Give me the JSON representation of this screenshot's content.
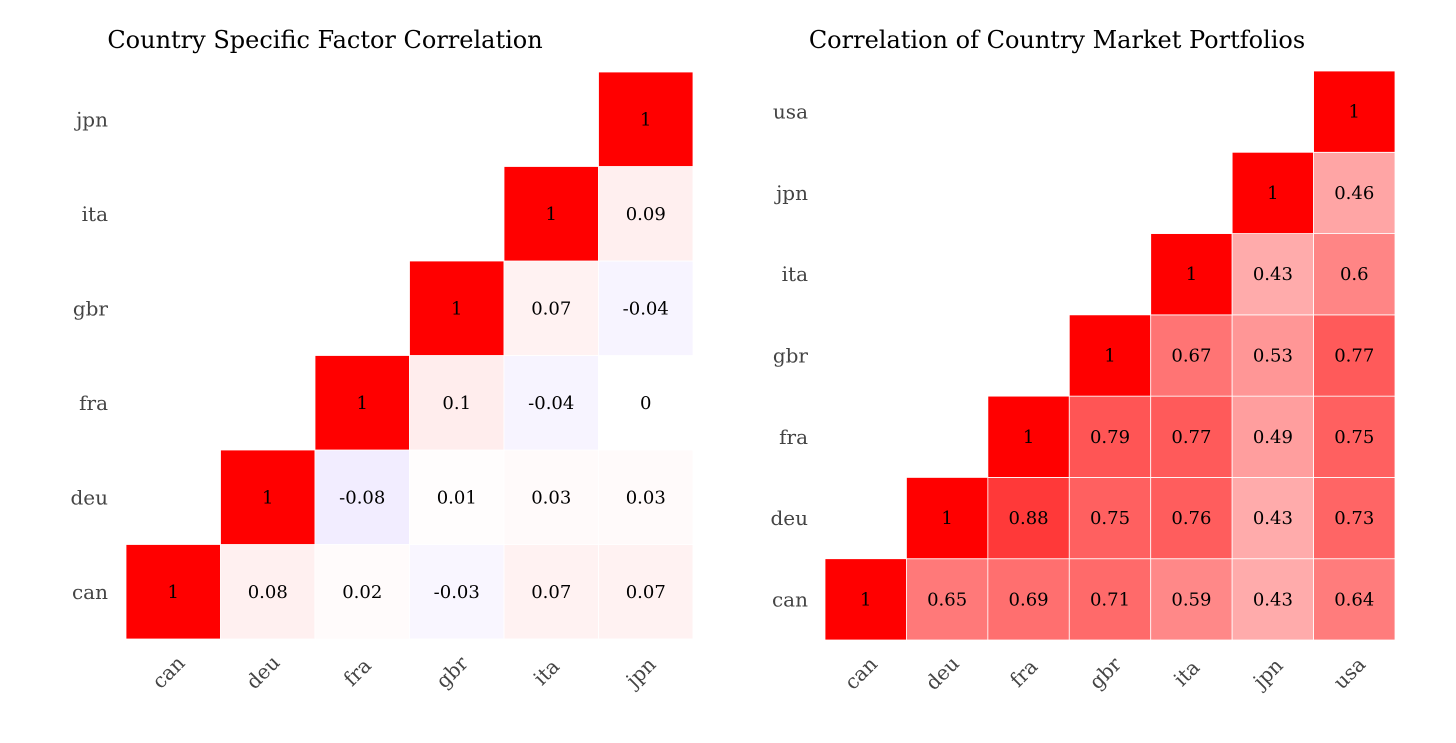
{
  "chart_data": [
    {
      "type": "heatmap",
      "title": "Country Specific Factor Correlation",
      "labels": [
        "can",
        "deu",
        "fra",
        "gbr",
        "ita",
        "jpn"
      ],
      "rows": [
        {
          "label": "can",
          "values": [
            1,
            0.08,
            0.02,
            -0.03,
            0.07,
            0.07
          ]
        },
        {
          "label": "deu",
          "values": [
            1,
            -0.08,
            0.01,
            0.03,
            0.03
          ]
        },
        {
          "label": "fra",
          "values": [
            1,
            0.1,
            -0.04,
            0
          ]
        },
        {
          "label": "gbr",
          "values": [
            1,
            0.07,
            -0.04
          ]
        },
        {
          "label": "ita",
          "values": [
            1,
            0.09
          ]
        },
        {
          "label": "jpn",
          "values": [
            1
          ]
        }
      ],
      "color_range": [
        -1,
        1
      ]
    },
    {
      "type": "heatmap",
      "title": "Correlation of Country Market Portfolios",
      "labels": [
        "can",
        "deu",
        "fra",
        "gbr",
        "ita",
        "jpn",
        "usa"
      ],
      "rows": [
        {
          "label": "can",
          "values": [
            1,
            0.65,
            0.69,
            0.71,
            0.59,
            0.43,
            0.64
          ]
        },
        {
          "label": "deu",
          "values": [
            1,
            0.88,
            0.75,
            0.76,
            0.43,
            0.73
          ]
        },
        {
          "label": "fra",
          "values": [
            1,
            0.79,
            0.77,
            0.49,
            0.75
          ]
        },
        {
          "label": "gbr",
          "values": [
            1,
            0.67,
            0.53,
            0.77
          ]
        },
        {
          "label": "ita",
          "values": [
            1,
            0.43,
            0.6
          ]
        },
        {
          "label": "jpn",
          "values": [
            1,
            0.46
          ]
        },
        {
          "label": "usa",
          "values": [
            1
          ]
        }
      ],
      "color_range": [
        -1,
        1
      ]
    }
  ],
  "colors": {
    "positive": "#ff0000",
    "negative": "#b496ff",
    "zero": "#ffffff"
  }
}
